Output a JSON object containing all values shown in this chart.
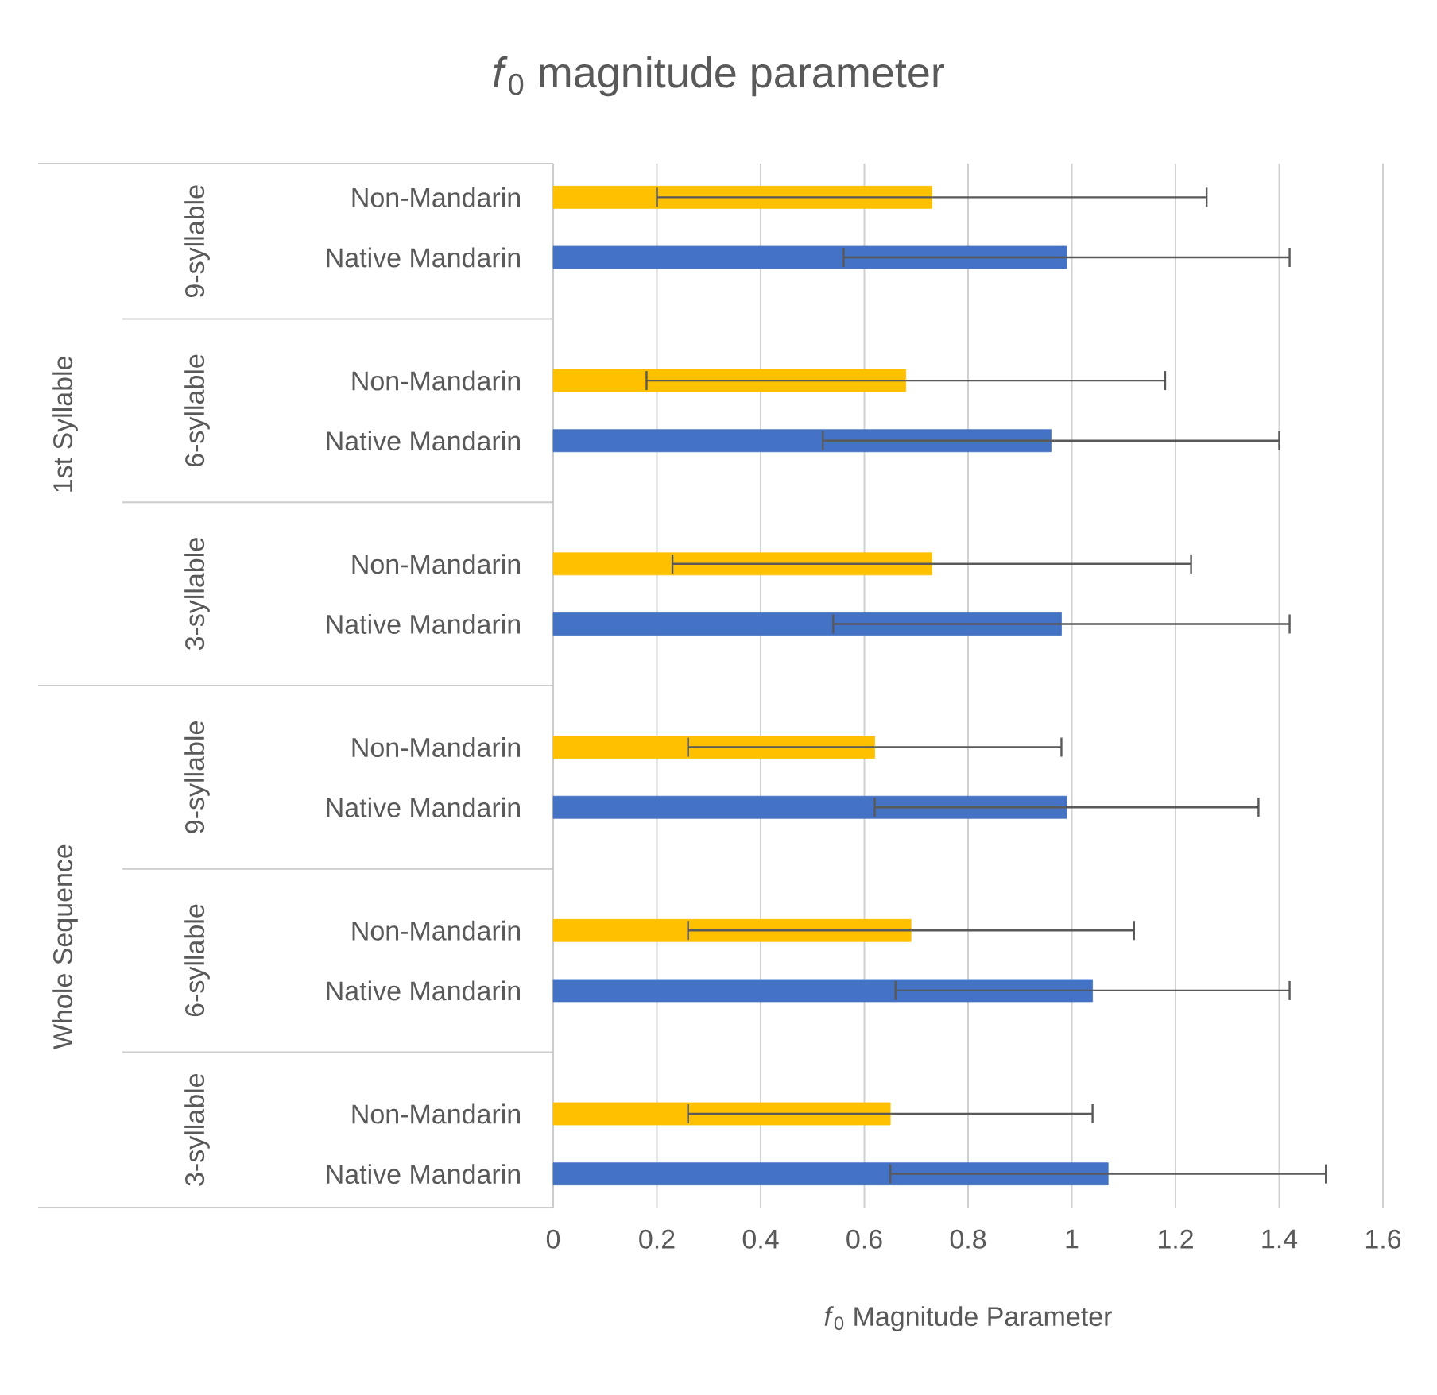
{
  "chart_data": {
    "type": "bar",
    "orientation": "horizontal",
    "title": "*f*$_{0}$ magnitude parameter",
    "xlabel": "*f*$_{0}$ Magnitude Parameter",
    "categories": [
      "Non-Mandarin",
      "Native Mandarin",
      "Non-Mandarin",
      "Native Mandarin",
      "Non-Mandarin",
      "Native Mandarin",
      "Non-Mandarin",
      "Native Mandarin",
      "Non-Mandarin",
      "Native Mandarin",
      "Non-Mandarin",
      "Native Mandarin"
    ],
    "values": [
      0.73,
      0.99,
      0.68,
      0.96,
      0.73,
      0.98,
      0.62,
      0.99,
      0.69,
      1.04,
      0.65,
      1.07
    ],
    "errors": [
      0.53,
      0.43,
      0.5,
      0.44,
      0.5,
      0.44,
      0.36,
      0.37,
      0.43,
      0.38,
      0.39,
      0.42
    ],
    "colors": [
      "#ffc000",
      "#4472c4",
      "#ffc000",
      "#4472c4",
      "#ffc000",
      "#4472c4",
      "#ffc000",
      "#4472c4",
      "#ffc000",
      "#4472c4",
      "#ffc000",
      "#4472c4"
    ],
    "xlim": [
      0,
      1.6
    ],
    "xticks": [
      0,
      0.2,
      0.4,
      0.6,
      0.8,
      1,
      1.2,
      1.4,
      1.6
    ],
    "grid": "x",
    "annotations": [
      "9-syllable",
      "6-syllable",
      "3-syllable",
      "9-syllable",
      "6-syllable",
      "3-syllable",
      "1st Syllable",
      "Whole Sequence"
    ]
  }
}
